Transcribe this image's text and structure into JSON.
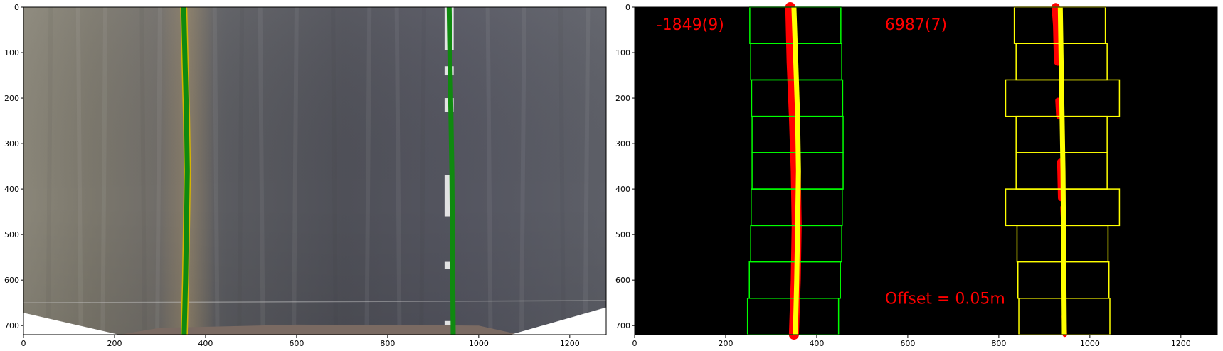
{
  "colors": {
    "axes_bg_right": "#000000",
    "road_dark": "#4a4c54",
    "road_light": "#6b6d73",
    "left_fit_line": "#0f8a0f",
    "window_left": "#00ff00",
    "window_right": "#ffff00",
    "lane_pixels": "#ff0000",
    "fit_line_right": "#ffff00",
    "overlay_text": "#ff0000"
  },
  "chart_data": [
    {
      "type": "image",
      "panel": "perspective-warped road with fitted lane lines",
      "xlim": [
        0,
        1280
      ],
      "ylim": [
        720,
        0
      ],
      "xticks": [
        0,
        200,
        400,
        600,
        800,
        1000,
        1200
      ],
      "yticks": [
        0,
        100,
        200,
        300,
        400,
        500,
        600,
        700
      ],
      "fit_lines": [
        {
          "x": [
            352,
            355,
            358,
            360,
            358,
            356,
            353
          ],
          "y": [
            0,
            120,
            240,
            360,
            480,
            600,
            720
          ]
        },
        {
          "x": [
            935,
            937,
            939,
            941,
            942,
            943,
            944
          ],
          "y": [
            0,
            120,
            240,
            360,
            480,
            600,
            720
          ]
        }
      ]
    },
    {
      "type": "image",
      "panel": "binary lane pixels with sliding windows",
      "xlim": [
        0,
        1280
      ],
      "ylim": [
        720,
        0
      ],
      "xticks": [
        0,
        200,
        400,
        600,
        800,
        1000,
        1200
      ],
      "yticks": [
        0,
        100,
        200,
        300,
        400,
        500,
        600,
        700
      ],
      "annotations": {
        "left_curvature": "-1849(9)",
        "right_curvature": "6987(7)",
        "offset": "Offset = 0.05m"
      },
      "left_windows": [
        {
          "x0": 253,
          "x1": 453,
          "y0": 0,
          "y1": 80
        },
        {
          "x0": 255,
          "x1": 455,
          "y0": 80,
          "y1": 160
        },
        {
          "x0": 257,
          "x1": 457,
          "y0": 160,
          "y1": 240
        },
        {
          "x0": 258,
          "x1": 458,
          "y0": 240,
          "y1": 320
        },
        {
          "x0": 258,
          "x1": 458,
          "y0": 320,
          "y1": 400
        },
        {
          "x0": 256,
          "x1": 456,
          "y0": 400,
          "y1": 480
        },
        {
          "x0": 255,
          "x1": 455,
          "y0": 480,
          "y1": 560
        },
        {
          "x0": 252,
          "x1": 452,
          "y0": 560,
          "y1": 640
        },
        {
          "x0": 248,
          "x1": 448,
          "y0": 640,
          "y1": 720
        }
      ],
      "right_windows": [
        {
          "x0": 834,
          "x1": 1034,
          "y0": 0,
          "y1": 80
        },
        {
          "x0": 838,
          "x1": 1038,
          "y0": 80,
          "y1": 160
        },
        {
          "x0": 815,
          "x1": 1065,
          "y0": 160,
          "y1": 240
        },
        {
          "x0": 838,
          "x1": 1038,
          "y0": 240,
          "y1": 320
        },
        {
          "x0": 838,
          "x1": 1038,
          "y0": 320,
          "y1": 400
        },
        {
          "x0": 815,
          "x1": 1065,
          "y0": 400,
          "y1": 480
        },
        {
          "x0": 840,
          "x1": 1040,
          "y0": 480,
          "y1": 560
        },
        {
          "x0": 842,
          "x1": 1042,
          "y0": 560,
          "y1": 640
        },
        {
          "x0": 844,
          "x1": 1044,
          "y0": 640,
          "y1": 720
        }
      ],
      "fit_lines": [
        {
          "x": [
            350,
            354,
            358,
            360,
            358,
            356,
            353
          ],
          "y": [
            0,
            120,
            240,
            360,
            480,
            600,
            720
          ]
        },
        {
          "x": [
            935,
            937,
            939,
            941,
            942,
            943,
            944
          ],
          "y": [
            0,
            120,
            240,
            360,
            480,
            600,
            720
          ]
        }
      ],
      "lane_pixel_segments": [
        {
          "x": [
            342,
            345,
            350,
            354,
            356,
            354,
            350
          ],
          "y": [
            0,
            120,
            240,
            360,
            480,
            600,
            720
          ],
          "w": 22
        },
        {
          "x": [
            925,
            928,
            930
          ],
          "y": [
            0,
            40,
            120
          ],
          "w": 18
        },
        {
          "x": [
            930,
            932
          ],
          "y": [
            205,
            240
          ],
          "w": 12
        },
        {
          "x": [
            935,
            937
          ],
          "y": [
            340,
            420
          ],
          "w": 14
        },
        {
          "x": [
            940,
            942
          ],
          "y": [
            440,
            480
          ],
          "w": 10
        },
        {
          "x": [
            941,
            943
          ],
          "y": [
            560,
            580
          ],
          "w": 10
        },
        {
          "x": [
            943,
            945
          ],
          "y": [
            680,
            720
          ],
          "w": 10
        }
      ]
    }
  ]
}
